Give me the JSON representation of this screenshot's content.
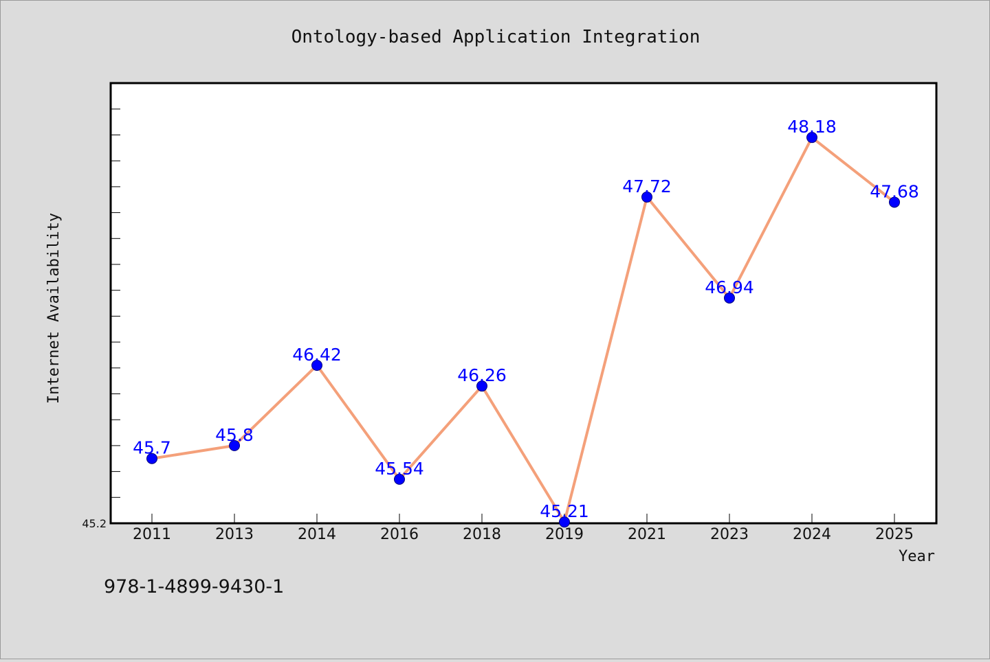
{
  "chart_data": {
    "type": "line",
    "title": "Ontology-based Application Integration",
    "xlabel": "Year",
    "ylabel": "Internet Availability",
    "categories": [
      "2011",
      "2013",
      "2014",
      "2016",
      "2018",
      "2019",
      "2021",
      "2023",
      "2024",
      "2025"
    ],
    "values": [
      45.7,
      45.8,
      46.42,
      45.54,
      46.26,
      45.21,
      47.72,
      46.94,
      48.18,
      47.68
    ],
    "data_labels": [
      "45.7",
      "45.8",
      "46.42",
      "45.54",
      "46.26",
      "45.21",
      "47.72",
      "46.94",
      "48.18",
      "47.68"
    ],
    "ylim": [
      45.2,
      48.6
    ],
    "ytick_labels": [
      "45.2"
    ],
    "grid": false,
    "legend": false,
    "colors": {
      "line": "#f4a07a",
      "marker": "#0000ff",
      "label": "#0000ff",
      "background": "#dcdcdc",
      "plot_background": "#ffffff"
    }
  },
  "footer": {
    "text": "978-1-4899-9430-1"
  }
}
